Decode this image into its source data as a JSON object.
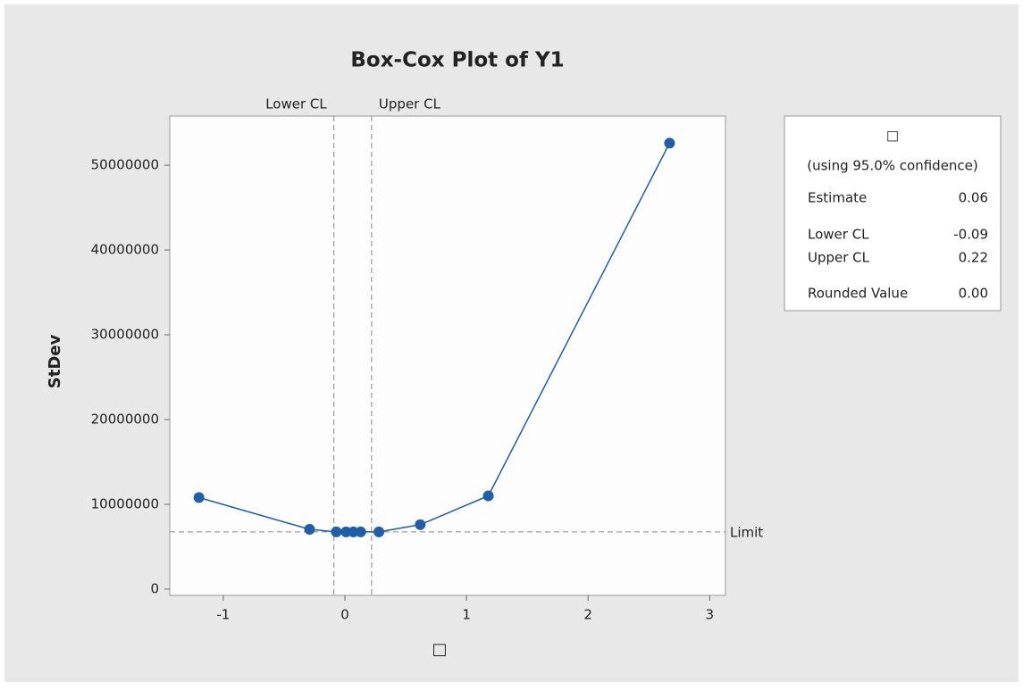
{
  "chart_data": {
    "type": "line",
    "title": "Box-Cox Plot of Y1",
    "x_label": "□",
    "y_label": "StDev",
    "x": [
      -1.2,
      -0.29,
      -0.07,
      0.01,
      0.07,
      0.13,
      0.28,
      0.62,
      1.18,
      2.67
    ],
    "series": [
      {
        "name": "StDev",
        "color": "#1f5ea8",
        "values": [
          10800000,
          7050000,
          6750000,
          6750000,
          6750000,
          6750000,
          6750000,
          7600000,
          11000000,
          52600000
        ]
      }
    ],
    "xlim": [
      -1.44,
      3.13
    ],
    "ylim": [
      -740000,
      55800000
    ],
    "xticks": [
      -1,
      0,
      1,
      2,
      3
    ],
    "yticks": [
      0,
      10000000,
      20000000,
      30000000,
      40000000,
      50000000
    ],
    "limit": {
      "label": "Limit",
      "value": 6750000
    },
    "legend_title": "□",
    "legend_subtitle": "(using 95.0% confidence)",
    "stats": [
      {
        "name": "Estimate",
        "value": 0.06
      },
      {
        "name": "Lower CL",
        "value": -0.09
      },
      {
        "name": "Upper CL",
        "value": 0.22
      },
      {
        "name": "Rounded Value",
        "value": 0,
        "value_label": "0.00"
      }
    ]
  }
}
